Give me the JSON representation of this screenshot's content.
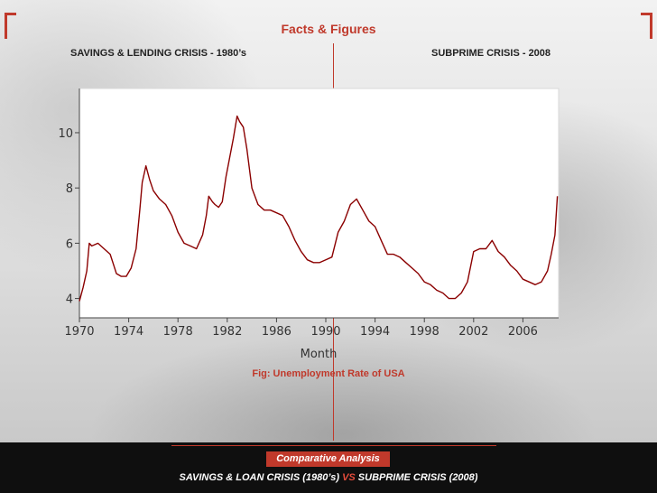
{
  "header": {
    "title": "Facts & Figures",
    "left_heading": "SAVINGS & LENDING CRISIS  - 1980’s",
    "right_heading": "SUBPRIME CRISIS - 2008"
  },
  "caption": "Fig: Unemployment Rate of USA",
  "footer": {
    "badge": "Comparative Analysis",
    "text_before": "SAVINGS & LOAN CRISIS (1980’s) ",
    "vs": "VS",
    "text_after": " SUBPRIME CRISIS (2008)"
  },
  "colors": {
    "accent": "#c0392b",
    "line": "#8b0000",
    "footer_bg": "#0f0f0f"
  },
  "chart_data": {
    "type": "line",
    "title": "",
    "xlabel": "Month",
    "ylabel": "",
    "xlim": [
      1970,
      2008.9
    ],
    "ylim": [
      3.3,
      11.6
    ],
    "x_ticks": [
      1970,
      1974,
      1978,
      1982,
      1986,
      1990,
      1994,
      1998,
      2002,
      2006
    ],
    "y_ticks": [
      4,
      6,
      8,
      10
    ],
    "grid": false,
    "series": [
      {
        "name": "",
        "x": [
          1970.0,
          1970.3,
          1970.6,
          1970.8,
          1971.0,
          1971.5,
          1972.0,
          1972.5,
          1973.0,
          1973.4,
          1973.8,
          1974.2,
          1974.6,
          1974.9,
          1975.1,
          1975.4,
          1975.7,
          1976.0,
          1976.5,
          1977.0,
          1977.5,
          1978.0,
          1978.5,
          1979.0,
          1979.5,
          1980.0,
          1980.3,
          1980.5,
          1980.8,
          1981.0,
          1981.3,
          1981.6,
          1981.9,
          1982.2,
          1982.5,
          1982.8,
          1983.0,
          1983.3,
          1983.6,
          1984.0,
          1984.5,
          1985.0,
          1985.5,
          1986.0,
          1986.5,
          1987.0,
          1987.5,
          1988.0,
          1988.5,
          1989.0,
          1989.5,
          1990.0,
          1990.5,
          1991.0,
          1991.5,
          1992.0,
          1992.5,
          1993.0,
          1993.5,
          1994.0,
          1994.5,
          1995.0,
          1995.5,
          1996.0,
          1996.5,
          1997.0,
          1997.5,
          1998.0,
          1998.5,
          1999.0,
          1999.5,
          2000.0,
          2000.5,
          2001.0,
          2001.5,
          2002.0,
          2002.5,
          2003.0,
          2003.5,
          2004.0,
          2004.5,
          2005.0,
          2005.5,
          2006.0,
          2006.5,
          2007.0,
          2007.5,
          2008.0,
          2008.3,
          2008.6,
          2008.8
        ],
        "y": [
          3.9,
          4.4,
          5.0,
          6.0,
          5.9,
          6.0,
          5.8,
          5.6,
          4.9,
          4.8,
          4.8,
          5.1,
          5.8,
          7.2,
          8.2,
          8.8,
          8.3,
          7.9,
          7.6,
          7.4,
          7.0,
          6.4,
          6.0,
          5.9,
          5.8,
          6.3,
          7.0,
          7.7,
          7.5,
          7.4,
          7.3,
          7.5,
          8.4,
          9.1,
          9.8,
          10.6,
          10.4,
          10.2,
          9.4,
          8.0,
          7.4,
          7.2,
          7.2,
          7.1,
          7.0,
          6.6,
          6.1,
          5.7,
          5.4,
          5.3,
          5.3,
          5.4,
          5.5,
          6.4,
          6.8,
          7.4,
          7.6,
          7.2,
          6.8,
          6.6,
          6.1,
          5.6,
          5.6,
          5.5,
          5.3,
          5.1,
          4.9,
          4.6,
          4.5,
          4.3,
          4.2,
          4.0,
          4.0,
          4.2,
          4.6,
          5.7,
          5.8,
          5.8,
          6.1,
          5.7,
          5.5,
          5.2,
          5.0,
          4.7,
          4.6,
          4.5,
          4.6,
          5.0,
          5.6,
          6.3,
          7.7
        ]
      }
    ]
  }
}
